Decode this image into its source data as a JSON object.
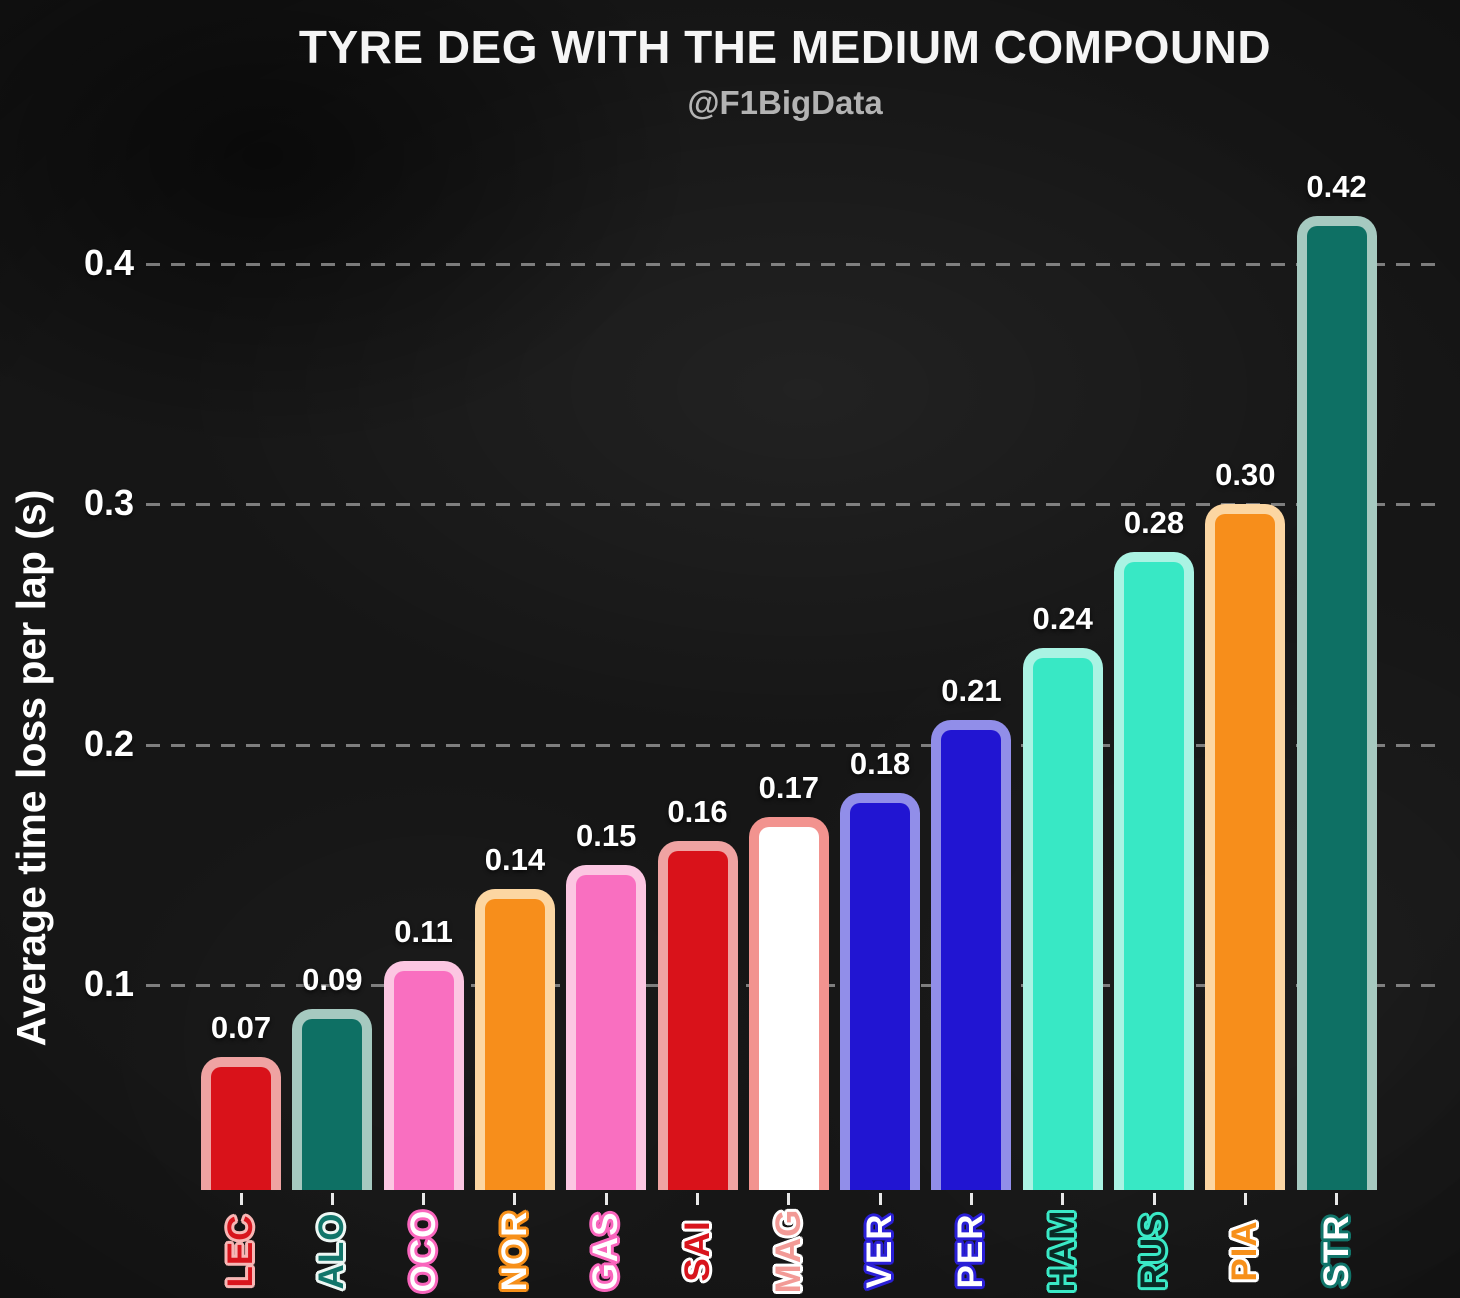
{
  "header": {
    "title": "TYRE DEG WITH THE MEDIUM COMPOUND",
    "subtitle": "@F1BigData"
  },
  "axes": {
    "y_title": "Average time loss per lap (s)",
    "ytick_labels": [
      "0.1",
      "0.2",
      "0.3",
      "0.4"
    ],
    "ytick_values": [
      0.1,
      0.2,
      0.3,
      0.4
    ]
  },
  "colors": {
    "background": "#161616",
    "gridline": "#d2d2d2",
    "title_text": "#f5f5f5",
    "subtitle_text": "#b3b3b3",
    "value_text": "#ffffff"
  },
  "chart_data": {
    "type": "bar",
    "title": "TYRE DEG WITH THE MEDIUM COMPOUND",
    "subtitle": "@F1BigData",
    "xlabel": "",
    "ylabel": "Average time loss per lap (s)",
    "ylim": [
      0,
      0.45
    ],
    "yticks": [
      0.1,
      0.2,
      0.3,
      0.4
    ],
    "grid": "horizontal-dashed",
    "legend": "none",
    "categories": [
      "LEC",
      "ALO",
      "OCO",
      "NOR",
      "GAS",
      "SAI",
      "MAG",
      "VER",
      "PER",
      "HAM",
      "RUS",
      "PIA",
      "STR"
    ],
    "values": [
      0.07,
      0.09,
      0.11,
      0.14,
      0.15,
      0.16,
      0.17,
      0.18,
      0.21,
      0.24,
      0.28,
      0.3,
      0.42
    ],
    "value_labels": [
      "0.07",
      "0.09",
      "0.11",
      "0.14",
      "0.15",
      "0.16",
      "0.17",
      "0.18",
      "0.21",
      "0.24",
      "0.28",
      "0.30",
      "0.42"
    ],
    "bars": [
      {
        "driver": "LEC",
        "value": 0.07,
        "label": "0.07",
        "fill": "#d9121a",
        "border": "#efa3a2",
        "label_fill": "#d8151d",
        "label_stroke": "#f7b7b5"
      },
      {
        "driver": "ALO",
        "value": 0.09,
        "label": "0.09",
        "fill": "#0e7064",
        "border": "#a6c9c0",
        "label_fill": "#11756a",
        "label_stroke": "#eef7f4"
      },
      {
        "driver": "OCO",
        "value": 0.11,
        "label": "0.11",
        "fill": "#f96fc0",
        "border": "#fcc6e2",
        "label_fill": "#ffffff",
        "label_stroke": "#f966bd"
      },
      {
        "driver": "NOR",
        "value": 0.14,
        "label": "0.14",
        "fill": "#f78e1b",
        "border": "#fcd6a2",
        "label_fill": "#ffffff",
        "label_stroke": "#f7901a"
      },
      {
        "driver": "GAS",
        "value": 0.15,
        "label": "0.15",
        "fill": "#f96fc0",
        "border": "#fcc6e2",
        "label_fill": "#ffffff",
        "label_stroke": "#f966bd"
      },
      {
        "driver": "SAI",
        "value": 0.16,
        "label": "0.16",
        "fill": "#d9121a",
        "border": "#efa3a2",
        "label_fill": "#d8151d",
        "label_stroke": "#ffffff"
      },
      {
        "driver": "MAG",
        "value": 0.17,
        "label": "0.17",
        "fill": "#ffffff",
        "border": "#f2938f",
        "label_fill": "#f29a96",
        "label_stroke": "#ffffff"
      },
      {
        "driver": "VER",
        "value": 0.18,
        "label": "0.18",
        "fill": "#2115d2",
        "border": "#918ee9",
        "label_fill": "#ffffff",
        "label_stroke": "#2a1fd6"
      },
      {
        "driver": "PER",
        "value": 0.21,
        "label": "0.21",
        "fill": "#2115d2",
        "border": "#918ee9",
        "label_fill": "#ffffff",
        "label_stroke": "#2a1fd6"
      },
      {
        "driver": "HAM",
        "value": 0.24,
        "label": "0.24",
        "fill": "#38e8c5",
        "border": "#aaf3e3",
        "label_fill": "#0a2a25",
        "label_stroke": "#3ae9c6"
      },
      {
        "driver": "RUS",
        "value": 0.28,
        "label": "0.28",
        "fill": "#38e8c5",
        "border": "#aaf3e3",
        "label_fill": "#0a2a25",
        "label_stroke": "#3ae9c6"
      },
      {
        "driver": "PIA",
        "value": 0.3,
        "label": "0.30",
        "fill": "#f78e1b",
        "border": "#fcd6a2",
        "label_fill": "#f7901a",
        "label_stroke": "#ffffff"
      },
      {
        "driver": "STR",
        "value": 0.42,
        "label": "0.42",
        "fill": "#0e7064",
        "border": "#a6c9c0",
        "label_fill": "#ffffff",
        "label_stroke": "#11756a"
      }
    ]
  }
}
